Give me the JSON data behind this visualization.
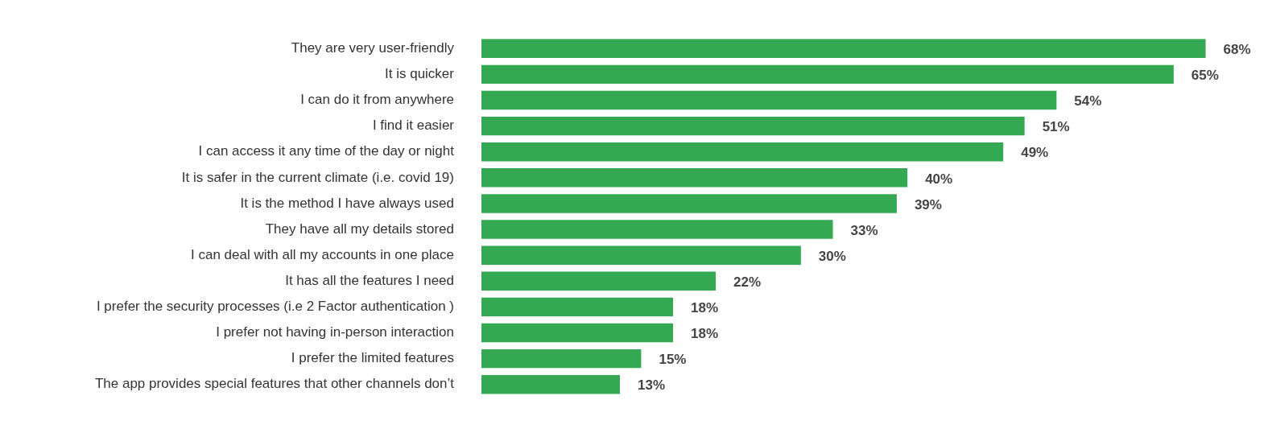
{
  "chart_data": {
    "type": "bar",
    "orientation": "horizontal",
    "categories": [
      "They are very user-friendly",
      "It is quicker",
      "I can do it from anywhere",
      "I find it easier",
      "I can access it any time of the day or night",
      "It is safer in the current climate (i.e. covid 19)",
      "It is the method I have always used",
      "They have all my details stored",
      "I can deal with all my accounts in one place",
      "It has all the features I need",
      "I prefer the security processes (i.e 2 Factor authentication )",
      "I prefer not having in-person interaction",
      "I prefer the limited features",
      "The app provides special features that other channels don’t"
    ],
    "values": [
      68,
      65,
      54,
      51,
      49,
      40,
      39,
      33,
      30,
      22,
      18,
      18,
      15,
      13
    ],
    "value_labels": [
      "68%",
      "65%",
      "54%",
      "51%",
      "49%",
      "40%",
      "39%",
      "33%",
      "30%",
      "22%",
      "18%",
      "18%",
      "15%",
      "13%"
    ],
    "color": "#34a853",
    "grid": false,
    "legend": false
  }
}
